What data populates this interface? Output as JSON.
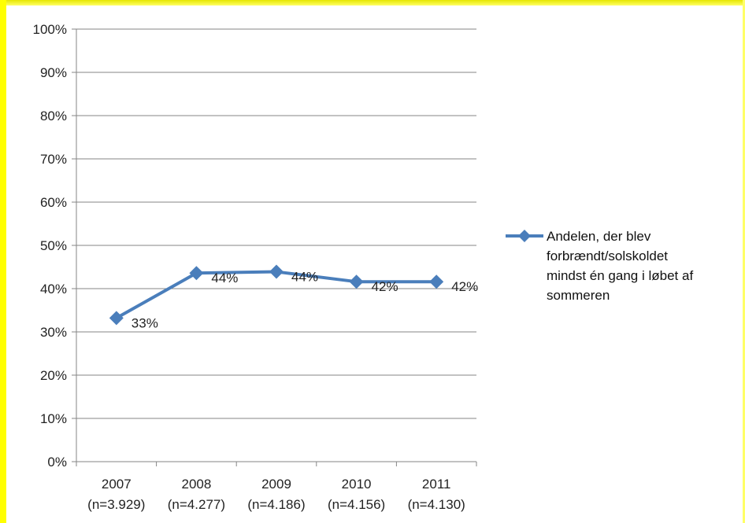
{
  "chart_data": {
    "type": "line",
    "categories": [
      [
        "2007",
        "(n=3.929)"
      ],
      [
        "2008",
        "(n=4.277)"
      ],
      [
        "2009",
        "(n=4.186)"
      ],
      [
        "2010",
        "(n=4.156)"
      ],
      [
        "2011",
        "(n=4.130)"
      ]
    ],
    "series": [
      {
        "name": "Andelen, der blev forbrændt/solskoldet mindst én gang i løbet af sommeren",
        "values": [
          33.2,
          43.6,
          43.9,
          41.6,
          41.6
        ],
        "data_labels": [
          "33%",
          "44%",
          "44%",
          "42%",
          "42%"
        ],
        "color": "#4a7ebb"
      }
    ],
    "legend_lines": [
      "Andelen, der blev",
      "forbrændt/solskoldet",
      "mindst én gang i løbet af",
      "sommeren"
    ],
    "y_ticks": [
      "0%",
      "10%",
      "20%",
      "30%",
      "40%",
      "50%",
      "60%",
      "70%",
      "80%",
      "90%",
      "100%"
    ],
    "ylim": [
      0,
      100
    ],
    "grid": true,
    "legend_position": "right",
    "colors": {
      "border": "#ffff00",
      "series": "#4a7ebb",
      "grid": "#868686"
    }
  }
}
